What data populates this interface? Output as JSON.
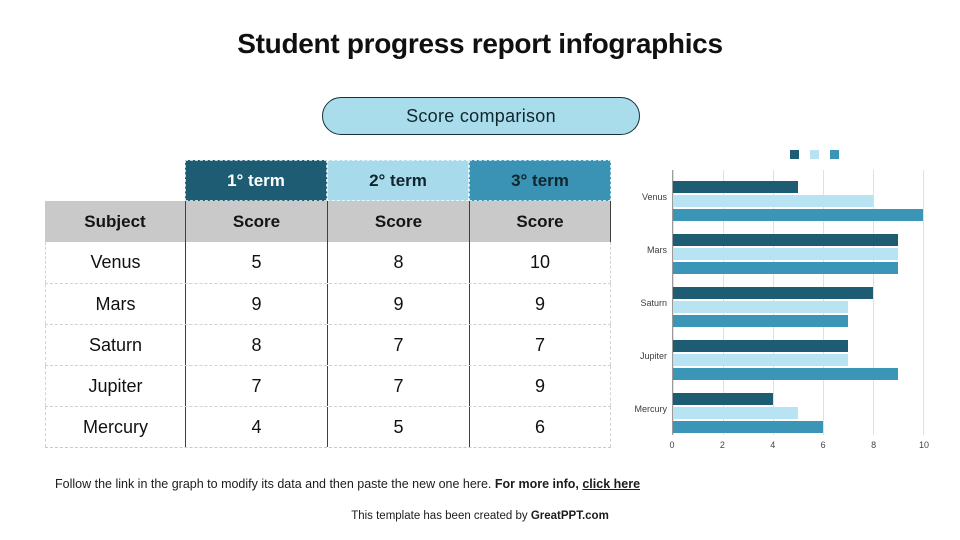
{
  "slide": {
    "title": "Student progress report infographics",
    "badge": "Score comparison"
  },
  "table": {
    "term_headers": [
      "1° term",
      "2° term",
      "3° term"
    ],
    "subject_header": "Subject",
    "score_header": "Score",
    "rows": [
      {
        "subject": "Venus",
        "scores": [
          5,
          8,
          10
        ]
      },
      {
        "subject": "Mars",
        "scores": [
          9,
          9,
          9
        ]
      },
      {
        "subject": "Saturn",
        "scores": [
          8,
          7,
          7
        ]
      },
      {
        "subject": "Jupiter",
        "scores": [
          7,
          7,
          9
        ]
      },
      {
        "subject": "Mercury",
        "scores": [
          4,
          5,
          6
        ]
      }
    ]
  },
  "chart_data": {
    "type": "bar",
    "orientation": "horizontal",
    "title": "",
    "categories": [
      "Venus",
      "Mars",
      "Saturn",
      "Jupiter",
      "Mercury"
    ],
    "series": [
      {
        "name": "1° term",
        "color": "#1d5c72",
        "values": [
          5,
          9,
          8,
          7,
          4
        ]
      },
      {
        "name": "2° term",
        "color": "#b7e3f2",
        "values": [
          8,
          9,
          7,
          7,
          5
        ]
      },
      {
        "name": "3° term",
        "color": "#3a95b6",
        "values": [
          10,
          9,
          7,
          9,
          6
        ]
      }
    ],
    "xlim": [
      0,
      10
    ],
    "xticks": [
      0,
      2,
      4,
      6,
      8,
      10
    ],
    "grid": true,
    "legend_position": "top"
  },
  "colors": {
    "term1_bg": "#1d5c72",
    "term2_bg": "#a7dbec",
    "term3_bg": "#3a93b4",
    "header_gray": "#c9c9c9",
    "badge_bg": "#a9ddec"
  },
  "footer": {
    "line1_normal": "Follow the link in the graph to modify its data and then paste the new one here. ",
    "line1_bold": "For more info, ",
    "line1_link": "click here",
    "line2_normal": "This template has been created by ",
    "line2_bold": "GreatPPT.com"
  }
}
